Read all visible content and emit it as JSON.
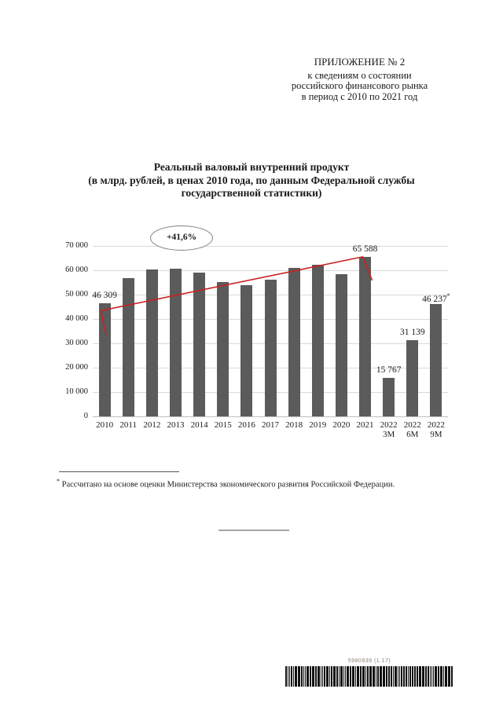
{
  "page": {
    "header_lines": [
      "ПРИЛОЖЕНИЕ № 2",
      "к сведениям о состоянии",
      "российского финансового рынка",
      "в период с 2010 по 2021 год"
    ],
    "footnote": {
      "marker": "*",
      "text": "Рассчитано на основе оценки Министерства экономического развития Российской Федерации."
    },
    "barcode_label": "5980939 (1.17)"
  },
  "chart_data": {
    "type": "bar",
    "title": "Реальный валовый внутренний продукт (в млрд. рублей, в ценах 2010 года, по данным Федеральной службы государственной статистики)",
    "title_lines": [
      "Реальный валовый внутренний продукт",
      "(в млрд. рублей, в ценах 2010 года, по данным Федеральной службы",
      "государственной статистики)"
    ],
    "categories": [
      {
        "label": "2010",
        "sublabel": ""
      },
      {
        "label": "2011",
        "sublabel": ""
      },
      {
        "label": "2012",
        "sublabel": ""
      },
      {
        "label": "2013",
        "sublabel": ""
      },
      {
        "label": "2014",
        "sublabel": ""
      },
      {
        "label": "2015",
        "sublabel": ""
      },
      {
        "label": "2016",
        "sublabel": ""
      },
      {
        "label": "2017",
        "sublabel": ""
      },
      {
        "label": "2018",
        "sublabel": ""
      },
      {
        "label": "2019",
        "sublabel": ""
      },
      {
        "label": "2020",
        "sublabel": ""
      },
      {
        "label": "2021",
        "sublabel": ""
      },
      {
        "label": "2022",
        "sublabel": "3М"
      },
      {
        "label": "2022",
        "sublabel": "6М"
      },
      {
        "label": "2022",
        "sublabel": "9М"
      }
    ],
    "values": [
      46309,
      56800,
      60200,
      60700,
      59000,
      55100,
      53900,
      56100,
      61000,
      62300,
      58300,
      65588,
      15767,
      31139,
      46237
    ],
    "data_labels": [
      {
        "index": 0,
        "text": "46 309",
        "sup": ""
      },
      {
        "index": 11,
        "text": "65 588",
        "sup": ""
      },
      {
        "index": 12,
        "text": "15 767",
        "sup": ""
      },
      {
        "index": 13,
        "text": "31 139",
        "sup": ""
      },
      {
        "index": 14,
        "text": "46 237",
        "sup": "*"
      }
    ],
    "ylim": [
      0,
      70000
    ],
    "ytick_step": 10000,
    "ytick_labels": [
      "0",
      "10 000",
      "20 000",
      "30 000",
      "40 000",
      "50 000",
      "60 000",
      "70 000"
    ],
    "grid": true,
    "legend": "none",
    "bar_color": "#5b5b5b",
    "grid_color": "#d9d9d9",
    "trend_line": {
      "color": "#cc2020",
      "points_cat_value": [
        [
          0.06,
          33500
        ],
        [
          -0.16,
          43400
        ],
        [
          10.9,
          65500
        ],
        [
          11.3,
          55800
        ]
      ]
    },
    "annotation": {
      "text": "+41,6%",
      "cat": 3.22,
      "value": 73500
    }
  }
}
